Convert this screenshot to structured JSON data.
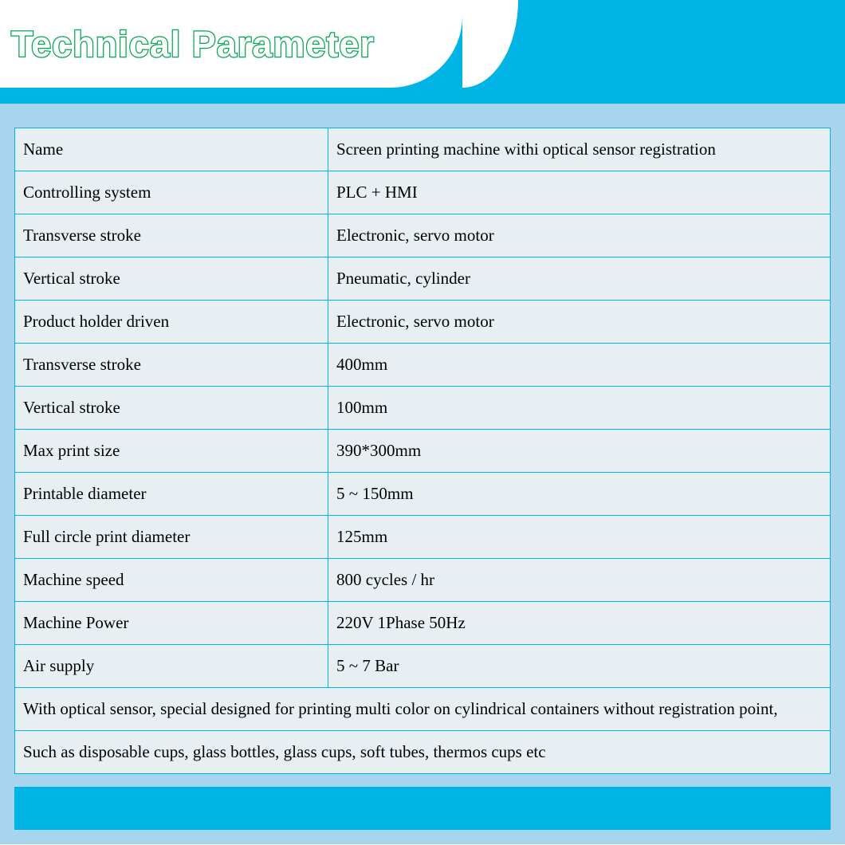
{
  "header": {
    "title": "Technical Parameter",
    "title_text_color": "#ffffff",
    "title_stroke_color": "#00a651",
    "title_fontsize": 45,
    "band_color": "#00b4e6",
    "cutout_color": "#ffffff"
  },
  "content": {
    "background_color": "#a6d5ed",
    "table_background": "#e8eff3",
    "border_color": "#00b4e6",
    "text_color": "#000000",
    "fontsize": 21,
    "label_column_width": 393,
    "rows": [
      {
        "label": "Name",
        "value": "Screen printing machine withi optical sensor registration"
      },
      {
        "label": "Controlling system",
        "value": "PLC + HMI"
      },
      {
        "label": "Transverse stroke",
        "value": "Electronic, servo motor"
      },
      {
        "label": "Vertical stroke",
        "value": "Pneumatic, cylinder"
      },
      {
        "label": "Product holder driven",
        "value": "Electronic, servo motor"
      },
      {
        "label": "Transverse stroke",
        "value": "400mm"
      },
      {
        "label": "Vertical stroke",
        "value": "100mm"
      },
      {
        "label": "Max print size",
        "value": "390*300mm"
      },
      {
        "label": "Printable diameter",
        "value": "5 ~ 150mm"
      },
      {
        "label": "Full circle print diameter",
        "value": "125mm"
      },
      {
        "label": "Machine speed",
        "value": "800 cycles / hr"
      },
      {
        "label": "Machine Power",
        "value": "220V 1Phase 50Hz"
      },
      {
        "label": "Air supply",
        "value": "5 ~ 7 Bar"
      }
    ],
    "footer_rows": [
      "With optical sensor, special designed for printing multi color on cylindrical containers without registration point,",
      "Such as disposable cups, glass bottles, glass cups, soft tubes, thermos cups etc"
    ]
  },
  "bottom_band_color": "#00b4e6"
}
